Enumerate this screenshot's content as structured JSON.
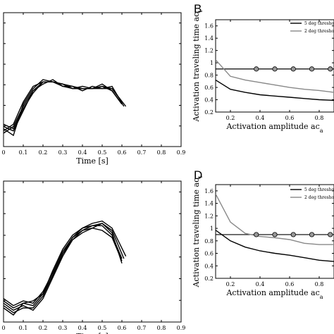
{
  "chart_data": [
    {
      "type": "line",
      "panel_label": "",
      "xlabel": "Time [s]",
      "ylabel": "",
      "xlim": [
        0,
        0.9
      ],
      "ylim": [
        0,
        0.6
      ],
      "x_ticks": [
        "0",
        "0.1",
        "0.2",
        "0.3",
        "0.4",
        "0.5",
        "0.6",
        "0.7",
        "0.8",
        "0.9"
      ],
      "y_ticks": [
        "",
        "",
        "",
        "",
        "",
        ""
      ],
      "series": [
        {
          "x": [
            0,
            0.05,
            0.1,
            0.15,
            0.2,
            0.25,
            0.3,
            0.35,
            0.4,
            0.45,
            0.5,
            0.55,
            0.6
          ],
          "y": [
            0.1,
            0.08,
            0.17,
            0.24,
            0.29,
            0.29,
            0.28,
            0.27,
            0.26,
            0.26,
            0.27,
            0.25,
            0.19
          ]
        },
        {
          "x": [
            0,
            0.05,
            0.1,
            0.15,
            0.2,
            0.25,
            0.3,
            0.35,
            0.4,
            0.45,
            0.5,
            0.55,
            0.62
          ],
          "y": [
            0.08,
            0.05,
            0.19,
            0.26,
            0.3,
            0.29,
            0.27,
            0.26,
            0.27,
            0.26,
            0.26,
            0.26,
            0.18
          ]
        },
        {
          "x": [
            0,
            0.05,
            0.1,
            0.15,
            0.2,
            0.25,
            0.3,
            0.35,
            0.4,
            0.45,
            0.5,
            0.55,
            0.6
          ],
          "y": [
            0.07,
            0.1,
            0.2,
            0.27,
            0.29,
            0.29,
            0.28,
            0.26,
            0.26,
            0.26,
            0.28,
            0.25,
            0.19
          ]
        },
        {
          "x": [
            0,
            0.05,
            0.1,
            0.15,
            0.2,
            0.25,
            0.3,
            0.35,
            0.4,
            0.45,
            0.5,
            0.55,
            0.61
          ],
          "y": [
            0.09,
            0.07,
            0.16,
            0.25,
            0.28,
            0.3,
            0.27,
            0.27,
            0.25,
            0.27,
            0.26,
            0.27,
            0.18
          ]
        },
        {
          "x": [
            0,
            0.05,
            0.1,
            0.15,
            0.2,
            0.25,
            0.3,
            0.35,
            0.4,
            0.45,
            0.5,
            0.55,
            0.6
          ],
          "y": [
            0.06,
            0.09,
            0.18,
            0.25,
            0.29,
            0.29,
            0.28,
            0.26,
            0.26,
            0.26,
            0.27,
            0.26,
            0.2
          ]
        }
      ]
    },
    {
      "type": "line",
      "panel_label": "B",
      "xlabel": "Activation amplitude ac",
      "xlabel_sub": "a",
      "ylabel": "Activation traveling time ac",
      "ylabel_sub": "t",
      "xlim": [
        0.1,
        0.9
      ],
      "ylim": [
        0.2,
        1.7
      ],
      "x_ticks": [
        "0.2",
        "0.4",
        "0.6",
        "0.8"
      ],
      "y_ticks": [
        "0.2",
        "0.4",
        "0.6",
        "0.8",
        "1",
        "1.2",
        "1.4",
        "1.6"
      ],
      "legend": [
        "5 deg thresho",
        "2 deg thresho"
      ],
      "series": [
        {
          "name": "5 deg thresho",
          "color": "#000000",
          "x": [
            0.1,
            0.2,
            0.3,
            0.4,
            0.5,
            0.6,
            0.7,
            0.8,
            0.9
          ],
          "y": [
            0.72,
            0.57,
            0.52,
            0.48,
            0.46,
            0.44,
            0.42,
            0.4,
            0.39
          ]
        },
        {
          "name": "2 deg thresho",
          "color": "#888888",
          "x": [
            0.1,
            0.2,
            0.3,
            0.4,
            0.5,
            0.6,
            0.7,
            0.8,
            0.9
          ],
          "y": [
            1.05,
            0.78,
            0.72,
            0.68,
            0.64,
            0.6,
            0.57,
            0.55,
            0.52
          ]
        }
      ],
      "hline": 0.9,
      "markers_x": [
        0.375,
        0.5,
        0.625,
        0.75,
        0.875
      ]
    },
    {
      "type": "line",
      "panel_label": "",
      "xlabel": "Time [s]",
      "ylabel": "",
      "xlim": [
        0,
        0.9
      ],
      "ylim": [
        0,
        0.6
      ],
      "x_ticks": [
        "0",
        "0.1",
        "0.2",
        "0.3",
        "0.4",
        "0.5",
        "0.6",
        "0.7",
        "0.8",
        "0.9"
      ],
      "y_ticks": [
        "",
        "",
        "",
        "",
        "",
        ""
      ],
      "series": [
        {
          "x": [
            0,
            0.05,
            0.1,
            0.15,
            0.2,
            0.25,
            0.3,
            0.35,
            0.4,
            0.45,
            0.5,
            0.55,
            0.6
          ],
          "y": [
            0.08,
            0.05,
            0.07,
            0.05,
            0.1,
            0.19,
            0.28,
            0.35,
            0.39,
            0.41,
            0.41,
            0.37,
            0.27
          ]
        },
        {
          "x": [
            0,
            0.05,
            0.1,
            0.15,
            0.2,
            0.25,
            0.3,
            0.35,
            0.4,
            0.45,
            0.5,
            0.55,
            0.62
          ],
          "y": [
            0.06,
            0.03,
            0.08,
            0.07,
            0.12,
            0.2,
            0.29,
            0.36,
            0.4,
            0.42,
            0.43,
            0.4,
            0.28
          ]
        },
        {
          "x": [
            0,
            0.05,
            0.1,
            0.15,
            0.2,
            0.25,
            0.3,
            0.35,
            0.4,
            0.45,
            0.5,
            0.55,
            0.6
          ],
          "y": [
            0.1,
            0.07,
            0.09,
            0.08,
            0.13,
            0.21,
            0.3,
            0.36,
            0.39,
            0.4,
            0.39,
            0.36,
            0.26
          ]
        },
        {
          "x": [
            0,
            0.05,
            0.1,
            0.15,
            0.2,
            0.25,
            0.3,
            0.35,
            0.4,
            0.45,
            0.5,
            0.55,
            0.61
          ],
          "y": [
            0.07,
            0.04,
            0.06,
            0.06,
            0.11,
            0.2,
            0.29,
            0.35,
            0.38,
            0.4,
            0.42,
            0.39,
            0.27
          ]
        },
        {
          "x": [
            0,
            0.05,
            0.1,
            0.15,
            0.2,
            0.25,
            0.3,
            0.35,
            0.4,
            0.45,
            0.5,
            0.55,
            0.6
          ],
          "y": [
            0.09,
            0.06,
            0.08,
            0.09,
            0.12,
            0.22,
            0.31,
            0.37,
            0.4,
            0.41,
            0.42,
            0.38,
            0.25
          ]
        }
      ]
    },
    {
      "type": "line",
      "panel_label": "D",
      "xlabel": "Activation amplitude ac",
      "xlabel_sub": "a",
      "ylabel": "Activation traveling time ac",
      "ylabel_sub": "t",
      "xlim": [
        0.1,
        0.9
      ],
      "ylim": [
        0.2,
        1.7
      ],
      "x_ticks": [
        "0.2",
        "0.4",
        "0.6",
        "0.8"
      ],
      "y_ticks": [
        "0.2",
        "0.4",
        "0.6",
        "0.8",
        "1",
        "1.2",
        "1.4",
        "1.6"
      ],
      "legend": [
        "5 deg thresho",
        "2 deg thresho"
      ],
      "series": [
        {
          "name": "5 deg thresho",
          "color": "#000000",
          "x": [
            0.1,
            0.2,
            0.3,
            0.4,
            0.5,
            0.6,
            0.7,
            0.8,
            0.9
          ],
          "y": [
            0.97,
            0.8,
            0.7,
            0.64,
            0.6,
            0.57,
            0.53,
            0.49,
            0.47
          ]
        },
        {
          "name": "2 deg thresho",
          "color": "#888888",
          "x": [
            0.1,
            0.2,
            0.3,
            0.4,
            0.5,
            0.6,
            0.7,
            0.8,
            0.9
          ],
          "y": [
            1.55,
            1.1,
            0.92,
            0.87,
            0.85,
            0.82,
            0.76,
            0.74,
            0.74
          ]
        }
      ],
      "hline": 0.9,
      "markers_x": [
        0.375,
        0.5,
        0.625,
        0.75,
        0.875
      ]
    }
  ]
}
